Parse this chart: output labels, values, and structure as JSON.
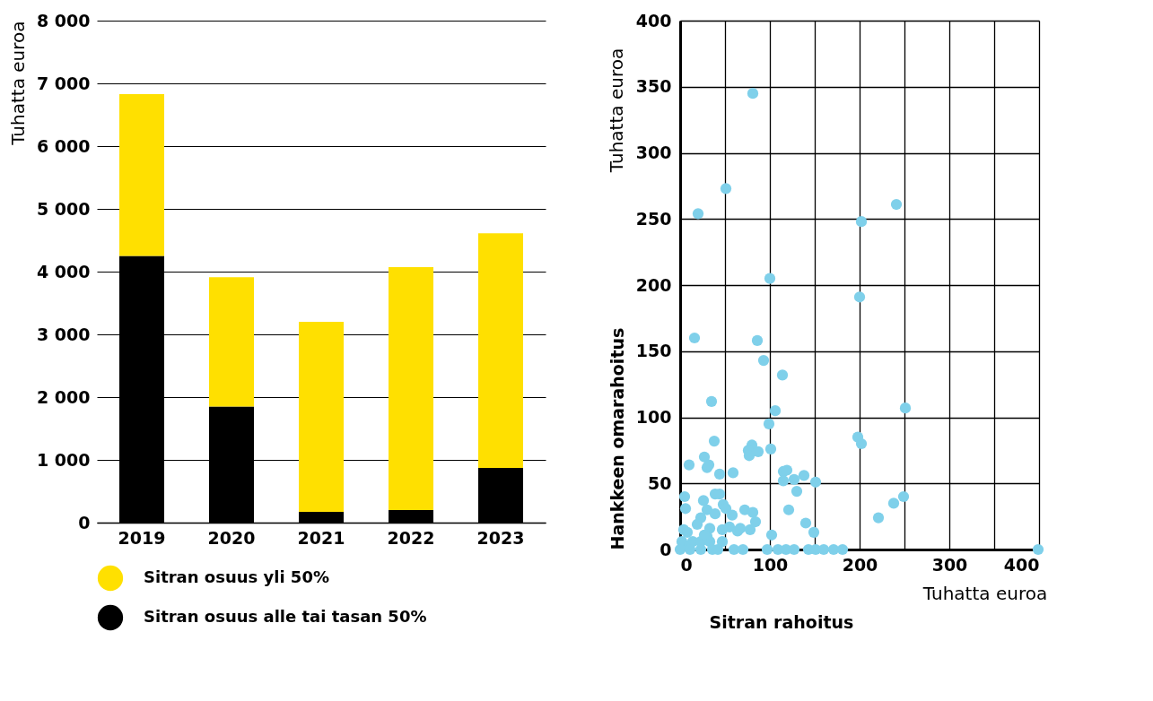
{
  "chart_data": [
    {
      "type": "bar",
      "ylabel": "Tuhatta euroa",
      "categories": [
        "2019",
        "2020",
        "2021",
        "2022",
        "2023"
      ],
      "stacked": true,
      "series": [
        {
          "name": "Sitran osuus alle tai tasan 50%",
          "color": "#000000",
          "values": [
            4250,
            1850,
            170,
            200,
            870
          ]
        },
        {
          "name": "Sitran osuus yli 50%",
          "color": "#ffe000",
          "values": [
            2580,
            2060,
            3030,
            3870,
            3740
          ]
        }
      ],
      "ylim": [
        0,
        8000
      ],
      "yticks": [
        0,
        {
          "value": 1000,
          "label": "1 000"
        },
        {
          "value": 2000,
          "label": "2 000"
        },
        {
          "value": 3000,
          "label": "3 000"
        },
        {
          "value": 4000,
          "label": "4 000"
        },
        {
          "value": 5000,
          "label": "5 000"
        },
        {
          "value": 6000,
          "label": "6 000"
        },
        {
          "value": 7000,
          "label": "7 000"
        },
        {
          "value": 8000,
          "label": "8 000"
        }
      ],
      "grid": "y",
      "legend": "bottom"
    },
    {
      "type": "scatter",
      "xlabel": "Sitran rahoitus",
      "ylabel": "Hankkeen omarahoitus",
      "annotations": [
        "Tuhatta euroa",
        "Tuhatta euroa"
      ],
      "marker": "circle",
      "color": "#7fd0ea",
      "x": [
        81,
        51,
        20,
        241,
        202,
        100,
        200,
        16,
        86,
        93,
        114,
        35,
        251,
        106,
        99,
        198,
        202,
        38,
        80,
        76,
        77,
        87,
        101,
        27,
        10,
        30,
        32,
        115,
        119,
        59,
        44,
        127,
        138,
        115,
        130,
        151,
        5,
        249,
        238,
        221,
        121,
        140,
        149,
        102,
        6,
        26,
        39,
        44,
        30,
        48,
        51,
        58,
        23,
        19,
        33,
        39,
        47,
        55,
        64,
        67,
        72,
        81,
        84,
        78,
        4,
        8,
        47,
        2,
        14,
        23,
        33,
        10,
        30,
        27,
        0,
        11,
        23,
        36,
        42,
        60,
        70,
        97,
        109,
        118,
        127,
        143,
        151,
        160,
        171,
        181,
        399
      ],
      "values": [
        345,
        273,
        254,
        261,
        248,
        205,
        191,
        160,
        158,
        143,
        132,
        112,
        107,
        105,
        95,
        85,
        80,
        82,
        79,
        75,
        71,
        74,
        76,
        70,
        64,
        62,
        64,
        59,
        60,
        58,
        57,
        53,
        56,
        52,
        44,
        51,
        40,
        40,
        35,
        24,
        30,
        20,
        13,
        11,
        31,
        37,
        42,
        42,
        30,
        34,
        31,
        26,
        24,
        19,
        16,
        27,
        15,
        17,
        14,
        16,
        30,
        28,
        21,
        15,
        15,
        13,
        6,
        6,
        6,
        6,
        6,
        3,
        10,
        11,
        0,
        0,
        0,
        0,
        0,
        0,
        0,
        0,
        0,
        0,
        0,
        0,
        0,
        0,
        0,
        0,
        0
      ],
      "xlim": [
        0,
        400
      ],
      "ylim": [
        0,
        400
      ],
      "xticks": [
        0,
        {
          "value": 50,
          "label": null
        },
        100,
        {
          "value": 150,
          "label": null
        },
        200,
        {
          "value": 250,
          "label": null
        },
        300,
        {
          "value": 350,
          "label": null
        },
        400
      ],
      "yticks": [
        0,
        50,
        100,
        150,
        200,
        250,
        300,
        350,
        400
      ],
      "grid": true
    }
  ]
}
